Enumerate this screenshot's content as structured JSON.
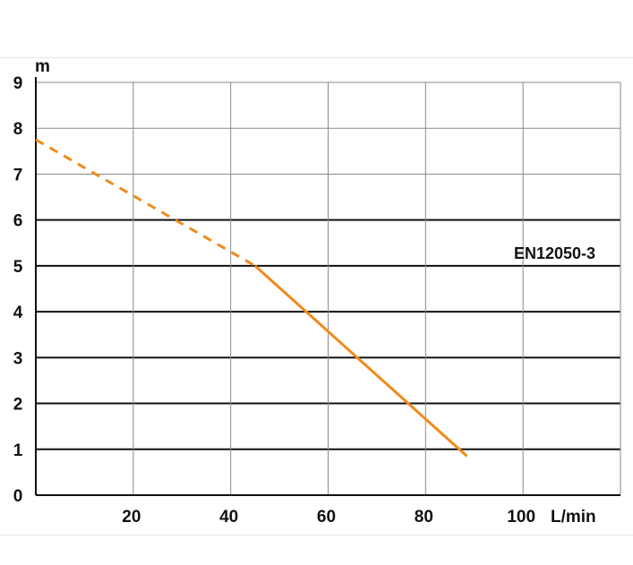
{
  "chart_data": {
    "type": "line",
    "title": "",
    "xlabel": "L/min",
    "ylabel": "m",
    "xlim": [
      0,
      120
    ],
    "ylim": [
      0,
      9
    ],
    "x_ticks": [
      20,
      40,
      60,
      80,
      100
    ],
    "y_ticks": [
      0,
      1,
      2,
      3,
      4,
      5,
      6,
      7,
      8,
      9
    ],
    "grid": true,
    "annotation": "EN12050-3",
    "colors": {
      "curve": "#f08a1c",
      "grid_minor": "#8a8a8a",
      "grid_major": "#111111"
    },
    "series": [
      {
        "style": "dashed",
        "x": [
          0,
          45
        ],
        "y": [
          7.75,
          5.0
        ]
      },
      {
        "style": "solid",
        "x": [
          45,
          88.5
        ],
        "y": [
          5.0,
          0.85
        ]
      }
    ]
  }
}
